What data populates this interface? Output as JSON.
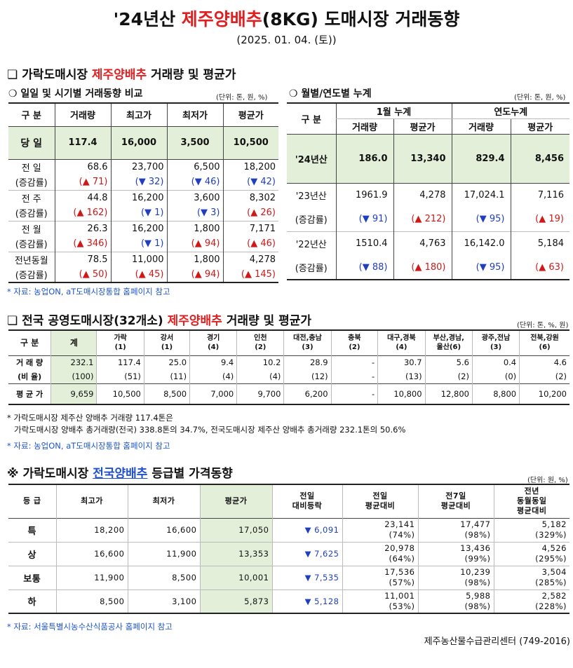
{
  "title": {
    "pre": "'24년산 ",
    "item": "제주양배추",
    "post": "(8KG) 도매시장 거래동향"
  },
  "date": "(2025. 01. 04. (토))",
  "section1": {
    "heading_pre": "❏ 가락도매시장 ",
    "heading_item": "제주양배추",
    "heading_post": " 거래량 및 평균가",
    "sub_left": "❍ 일일 및 시기별 거래동향 비교",
    "unit_left": "(단위: 톤, 원, %)",
    "sub_right": "❍ 월별/연도별 누계",
    "unit_right": "(단위: 톤, 원, %)",
    "daily": {
      "headers": [
        "구  분",
        "거래량",
        "최고가",
        "최저가",
        "평균가"
      ],
      "today": {
        "label": "당  일",
        "values": [
          "117.4",
          "16,000",
          "3,500",
          "10,500"
        ]
      },
      "rows": [
        {
          "label": "전  일",
          "values": [
            "68.6",
            "23,700",
            "6,500",
            "18,200"
          ],
          "change_label": "(증감률)",
          "changes": [
            "(▲ 71)",
            "(▼ 32)",
            "(▼ 46)",
            "(▼ 42)"
          ],
          "dirs": [
            "up",
            "dn",
            "dn",
            "dn"
          ]
        },
        {
          "label": "전  주",
          "values": [
            "44.8",
            "16,200",
            "3,600",
            "8,302"
          ],
          "change_label": "(증감률)",
          "changes": [
            "(▲ 162)",
            "(▼ 1)",
            "(▼ 3)",
            "(▲ 26)"
          ],
          "dirs": [
            "up",
            "dn",
            "dn",
            "up"
          ]
        },
        {
          "label": "전  월",
          "values": [
            "26.3",
            "16,200",
            "1,800",
            "7,171"
          ],
          "change_label": "(증감률)",
          "changes": [
            "(▲ 346)",
            "(▼ 1)",
            "(▲ 94)",
            "(▲ 46)"
          ],
          "dirs": [
            "up",
            "dn",
            "up",
            "up"
          ]
        },
        {
          "label": "전년동월",
          "values": [
            "78.5",
            "11,000",
            "1,800",
            "4,278"
          ],
          "change_label": "(증감률)",
          "changes": [
            "(▲ 50)",
            "(▲ 45)",
            "(▲ 94)",
            "(▲ 145)"
          ],
          "dirs": [
            "up",
            "up",
            "up",
            "up"
          ]
        }
      ]
    },
    "cumulative": {
      "col0": "구  분",
      "group1": "1월 누계",
      "group2": "연도누계",
      "subheaders": [
        "거래량",
        "평균가",
        "거래량",
        "평균가"
      ],
      "current": {
        "label": "'24년산",
        "values": [
          "186.0",
          "13,340",
          "829.4",
          "8,456"
        ]
      },
      "rows": [
        {
          "label": "'23년산",
          "values": [
            "1961.9",
            "4,278",
            "17,024.1",
            "7,116"
          ],
          "change_label": "(증감률)",
          "changes": [
            "(▼ 91)",
            "(▲ 212)",
            "(▼ 95)",
            "(▲ 19)"
          ],
          "dirs": [
            "dn",
            "up",
            "dn",
            "up"
          ]
        },
        {
          "label": "'22년산",
          "values": [
            "1510.4",
            "4,763",
            "16,142.0",
            "5,184"
          ],
          "change_label": "(증감률)",
          "changes": [
            "(▼ 88)",
            "(▲ 180)",
            "(▼ 95)",
            "(▲ 63)"
          ],
          "dirs": [
            "dn",
            "up",
            "dn",
            "up"
          ]
        }
      ]
    },
    "source": "* 자료: 농업ON, aT도매시장통합 홈페이지 참고"
  },
  "section2": {
    "heading_pre": "❏ 전국 공영도매시장(32개소) ",
    "heading_item": "제주양배추",
    "heading_post": " 거래량 및 평균가",
    "unit": "(단위: 톤, %, 원)",
    "headers": [
      "구  분",
      "계",
      "가락\n(1)",
      "강서\n(1)",
      "경기\n(4)",
      "인천\n(2)",
      "대전,충남\n(3)",
      "충북\n(2)",
      "대구,경북\n(4)",
      "부산,경남,\n울산(6)",
      "광주,전남\n(3)",
      "전북,강원\n(6)"
    ],
    "volume": {
      "label": "거 래 량",
      "values": [
        "232.1",
        "117.4",
        "25.0",
        "9.4",
        "10.2",
        "28.9",
        "-",
        "30.7",
        "5.6",
        "0.4",
        "4.6"
      ]
    },
    "ratio": {
      "label": "(비 율)",
      "values": [
        "(100)",
        "(51)",
        "(11)",
        "(4)",
        "(4)",
        "(12)",
        "-",
        "(13)",
        "(2)",
        "(0)",
        "(2)"
      ]
    },
    "price": {
      "label": "평 균 가",
      "values": [
        "9,659",
        "10,500",
        "8,500",
        "7,000",
        "9,700",
        "6,200",
        "-",
        "10,800",
        "12,800",
        "8,800",
        "10,200"
      ]
    },
    "note1": "* 가락도매시장 제주산 양배추 거래량 117.4톤은",
    "note2": "가락도매시장 양배추 총거래량(전국) 338.8톤의 34.7%, 전국도매시장 제주산 양배추 총거래량 232.1톤의 50.6%",
    "source": "* 자료: 농업ON, aT도매시장통합 홈페이지 참고"
  },
  "section3": {
    "heading_pre": "※ 가락도매시장 ",
    "heading_item": "전국양배추",
    "heading_post": " 등급별 가격동향",
    "unit": "(단위: 원, %)",
    "headers": [
      "등  급",
      "최고가",
      "최저가",
      "평균가",
      "전일\n대비등락",
      "전일\n평균대비",
      "전7일\n평균대비",
      "전년\n동월동일\n평균대비"
    ],
    "rows": [
      {
        "grade": "특",
        "max": "18,200",
        "min": "16,600",
        "avg": "17,050",
        "diff": "▼ 6,091",
        "prev": "23,141",
        "prev_pct": "(74%)",
        "prev7": "17,477",
        "prev7_pct": "(98%)",
        "ly": "5,182",
        "ly_pct": "(329%)"
      },
      {
        "grade": "상",
        "max": "16,600",
        "min": "11,900",
        "avg": "13,353",
        "diff": "▼ 7,625",
        "prev": "20,978",
        "prev_pct": "(64%)",
        "prev7": "13,436",
        "prev7_pct": "(99%)",
        "ly": "4,526",
        "ly_pct": "(295%)"
      },
      {
        "grade": "보통",
        "max": "11,900",
        "min": "8,500",
        "avg": "10,001",
        "diff": "▼ 7,535",
        "prev": "17,536",
        "prev_pct": "(57%)",
        "prev7": "10,239",
        "prev7_pct": "(98%)",
        "ly": "3,504",
        "ly_pct": "(285%)"
      },
      {
        "grade": "하",
        "max": "8,500",
        "min": "3,100",
        "avg": "5,873",
        "diff": "▼ 5,128",
        "prev": "11,001",
        "prev_pct": "(53%)",
        "prev7": "5,988",
        "prev7_pct": "(98%)",
        "ly": "2,582",
        "ly_pct": "(228%)"
      }
    ],
    "source": "* 자료: 서울특별시농수산식품공사 홈페이지 참고"
  },
  "footer": "제주농산물수급관리센터 (749-2016)",
  "colors": {
    "accent_red": "#e02020",
    "accent_blue": "#1f4fd0",
    "highlight_green": "#e3efd9",
    "down_blue": "#1f3fc0",
    "up_red": "#d01818"
  }
}
